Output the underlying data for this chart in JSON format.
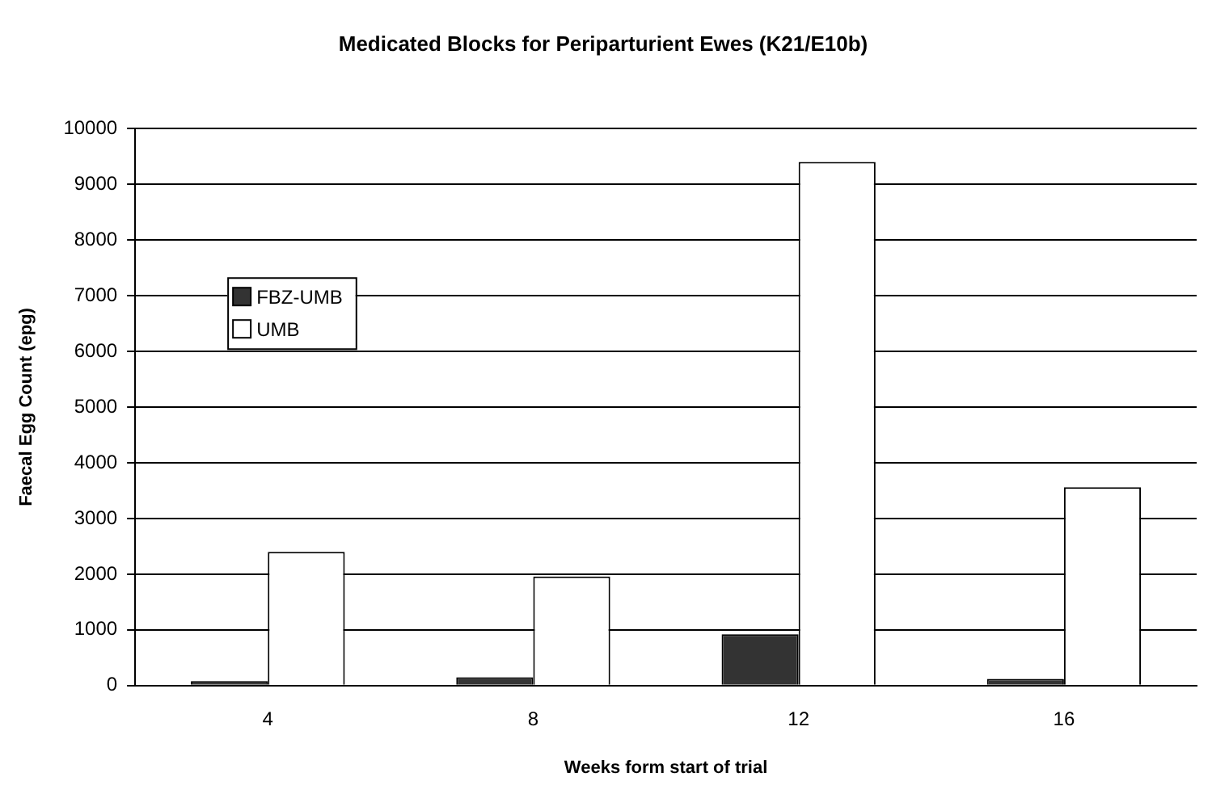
{
  "chart_data": {
    "type": "bar",
    "title": "Medicated Blocks for Periparturient Ewes (K21/E10b)",
    "xlabel": "Weeks form start of trial",
    "ylabel": "Faecal Egg Count (epg)",
    "categories": [
      "4",
      "8",
      "12",
      "16"
    ],
    "series": [
      {
        "name": "FBZ-UMB",
        "color": "#333333",
        "values": [
          80,
          150,
          920,
          120
        ]
      },
      {
        "name": "UMB",
        "color": "#ffffff",
        "values": [
          2400,
          1960,
          9400,
          3560
        ]
      }
    ],
    "ylim": [
      0,
      10000
    ],
    "yticks": [
      0,
      1000,
      2000,
      3000,
      4000,
      5000,
      6000,
      7000,
      8000,
      9000,
      10000
    ],
    "grid": "y",
    "legend": "left"
  }
}
